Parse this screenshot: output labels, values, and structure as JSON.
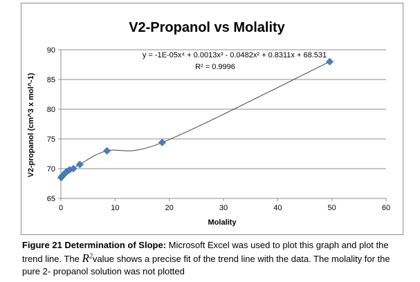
{
  "chart_data": {
    "type": "scatter",
    "title": "V2-Propanol vs Molality",
    "xlabel": "Molality",
    "ylabel": "V2-propanol (cm^3 x mol^-1)",
    "xlim": [
      0,
      60
    ],
    "ylim": [
      65,
      90
    ],
    "xticks": [
      0,
      10,
      20,
      30,
      40,
      50,
      60
    ],
    "yticks": [
      65,
      70,
      75,
      80,
      85,
      90
    ],
    "grid": "horizontal",
    "legend": "none",
    "marker": "diamond",
    "marker_color": "#4a7ebb",
    "trendline": {
      "type": "polynomial",
      "order": 4,
      "equation_label": "y = -1E-05x⁴ + 0.0013x³ - 0.0482x² + 0.8311x + 68.531",
      "r2_label": "R² = 0.9996",
      "color": "#404040"
    },
    "series": [
      {
        "x": [
          0.05,
          0.2,
          0.4,
          0.7,
          1.1,
          1.6,
          2.3,
          3.5,
          8.5,
          18.7,
          49.6
        ],
        "y": [
          68.5,
          68.7,
          68.9,
          69.2,
          69.5,
          69.8,
          70.0,
          70.7,
          73.0,
          74.4,
          88.0
        ]
      }
    ]
  },
  "caption": {
    "figure_label": "Figure 21 Determination of Slope:",
    "text_1": " Microsoft Excel was used to plot this graph and plot the trend line.  The ",
    "r2_symbol": "R",
    "r2_superscript": "2",
    "text_2": "value shows a precise fit of the trend line with the data.  The molality for the pure 2- propanol solution was not plotted"
  }
}
